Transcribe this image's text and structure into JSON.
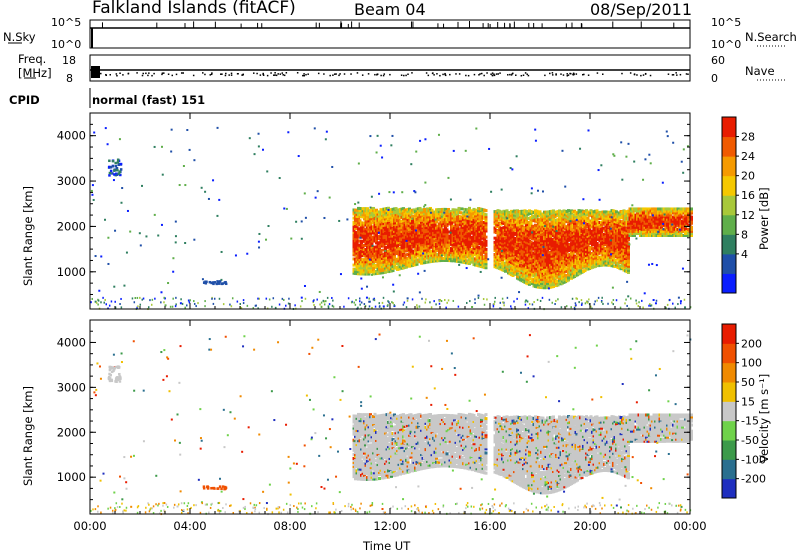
{
  "header": {
    "station": "Falkland Islands (fitACF)",
    "beam": "Beam 04",
    "date": "08/Sep/2011"
  },
  "noise_panel": {
    "left_label": "N.Sky",
    "left_ticks": [
      "10^5",
      "10^0"
    ],
    "right_ticks": [
      "10^5",
      "10^0"
    ],
    "right_label": "N.Search"
  },
  "freq_panel": {
    "left_label_1": "Freq.",
    "left_label_2": "[MHz]",
    "left_ticks": [
      "18",
      "8"
    ],
    "right_ticks": [
      "60",
      "0"
    ],
    "right_label": "Nave"
  },
  "cpid": {
    "label": "CPID",
    "value": "normal (fast) 151"
  },
  "chart_data": [
    {
      "type": "heatmap",
      "name": "power",
      "ylabel": "Slant Range [km]",
      "y_ticks": [
        "4000",
        "3000",
        "2000",
        "1000"
      ],
      "x_ticks": [
        "00:00",
        "04:00",
        "08:00",
        "12:00",
        "16:00",
        "20:00",
        "00:00"
      ],
      "colorbar_label": "Power [dB]",
      "colorbar_ticks": [
        "28",
        "24",
        "20",
        "16",
        "12",
        "8",
        "4"
      ],
      "colors": [
        "#0a1eff",
        "#1f4fa8",
        "#2f7f60",
        "#5fae4a",
        "#a8c83a",
        "#f5c800",
        "#f59a00",
        "#f05a00",
        "#e81c00"
      ]
    },
    {
      "type": "heatmap",
      "name": "velocity",
      "ylabel": "Slant Range [km]",
      "y_ticks": [
        "4000",
        "3000",
        "2000",
        "1000"
      ],
      "x_ticks": [
        "00:00",
        "04:00",
        "08:00",
        "12:00",
        "16:00",
        "20:00",
        "00:00"
      ],
      "xlabel": "Time UT",
      "colorbar_label": "Velocity [m s⁻¹]",
      "colorbar_ticks": [
        "200",
        "100",
        "50",
        "15",
        "-15",
        "-50",
        "-100",
        "-200"
      ],
      "colors": [
        "#1f2fbf",
        "#2a6f8f",
        "#3c9a4a",
        "#6fd24a",
        "#c8c8c8",
        "#f0c000",
        "#f08a00",
        "#f05000",
        "#e81c00"
      ]
    }
  ]
}
